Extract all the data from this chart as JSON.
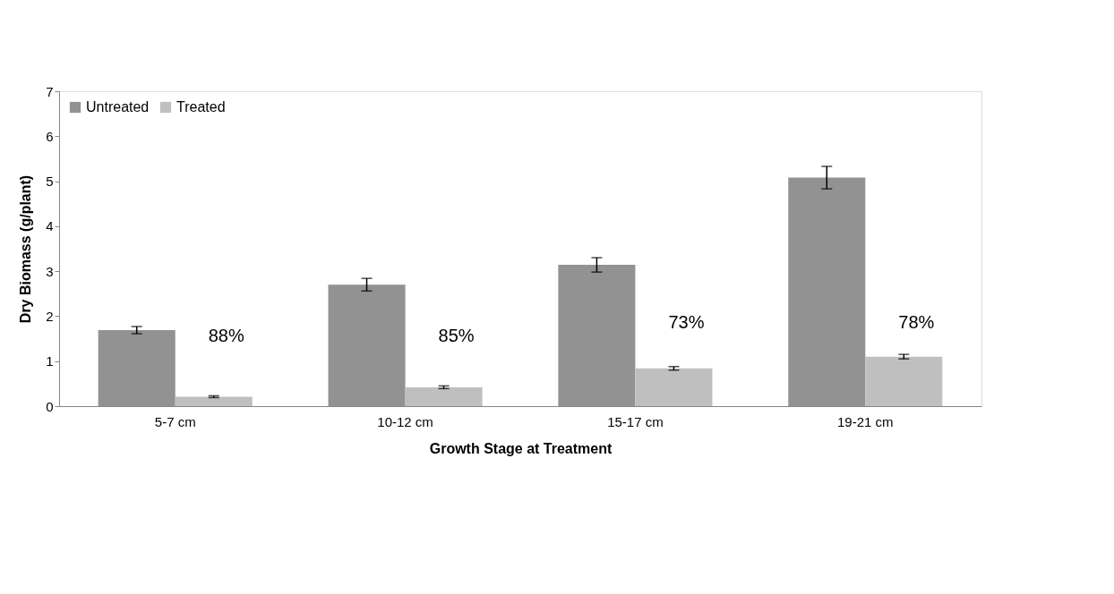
{
  "chart_data": {
    "type": "bar",
    "xlabel": "Growth Stage at Treatment",
    "ylabel": "Dry Biomass (g/plant)",
    "categories": [
      "5-7 cm",
      "10-12 cm",
      "15-17 cm",
      "19-21 cm"
    ],
    "series": [
      {
        "name": "Untreated",
        "color": "#929292",
        "values": [
          1.69,
          2.7,
          3.14,
          5.08
        ],
        "errors": [
          0.08,
          0.14,
          0.16,
          0.25
        ]
      },
      {
        "name": "Treated",
        "color": "#bfbfbf",
        "values": [
          0.21,
          0.42,
          0.84,
          1.1
        ],
        "errors": [
          0.02,
          0.03,
          0.04,
          0.05
        ]
      }
    ],
    "ylim": [
      0,
      7
    ],
    "yticks": [
      0,
      1,
      2,
      3,
      4,
      5,
      6,
      7
    ],
    "grid": false,
    "legend": "top left",
    "annotations": [
      {
        "text": "88%",
        "x": "5-7 cm",
        "y": 1.55
      },
      {
        "text": "85%",
        "x": "10-12 cm",
        "y": 1.55
      },
      {
        "text": "73%",
        "x": "15-17 cm",
        "y": 1.85
      },
      {
        "text": "78%",
        "x": "19-21 cm",
        "y": 1.85
      }
    ]
  }
}
